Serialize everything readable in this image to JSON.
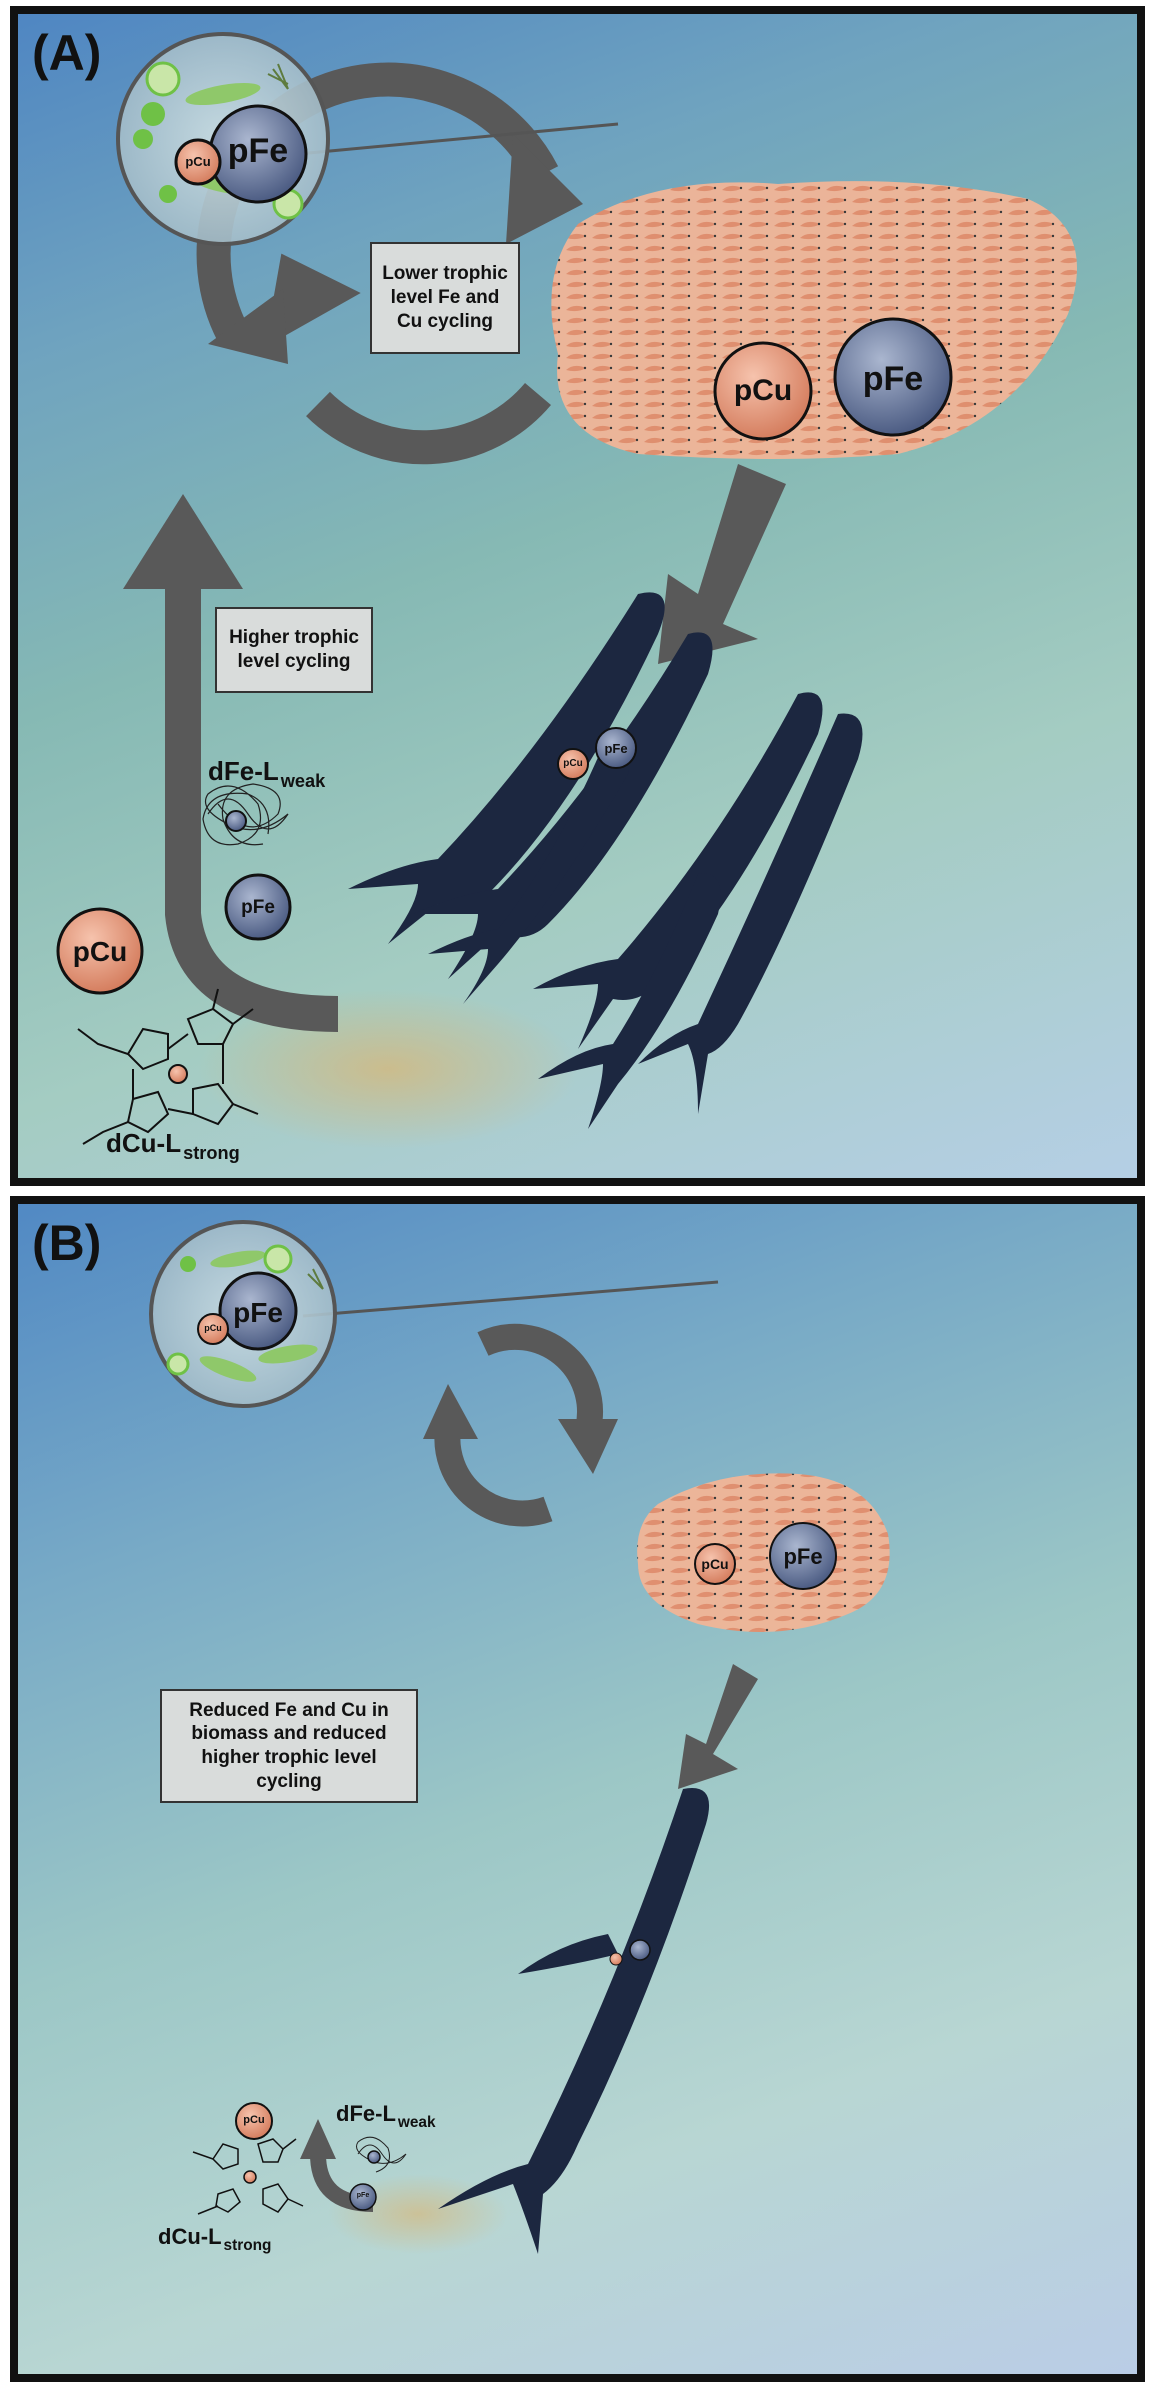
{
  "panel_a": {
    "label": "(A)",
    "lower_cycle_box": "Lower trophic level Fe and Cu cycling",
    "higher_cycle_box": "Higher trophic level cycling",
    "phyto_pfe": "pFe",
    "phyto_pcu": "pCu",
    "krill_pcu": "pCu",
    "krill_pfe": "pFe",
    "whale_pcu": "pCu",
    "whale_pfe": "pFe",
    "feces_pfe": "pFe",
    "feces_pcu": "pCu",
    "dfe_label_main": "dFe-L",
    "dfe_label_sub": "weak",
    "dcu_label_main": "dCu-L",
    "dcu_label_sub": "strong"
  },
  "panel_b": {
    "label": "(B)",
    "reduced_box": "Reduced Fe and Cu in biomass and reduced higher trophic level cycling",
    "phyto_pfe": "pFe",
    "phyto_pcu": "pCu",
    "krill_pcu": "pCu",
    "krill_pfe": "pFe",
    "feces_pcu": "pCu",
    "feces_pfe": "pFe",
    "dfe_label_main": "dFe-L",
    "dfe_label_sub": "weak",
    "dcu_label_main": "dCu-L",
    "dcu_label_sub": "strong"
  },
  "colors": {
    "arrow": "#595959",
    "pcu_fill": "#e0977c",
    "pfe_fill": "#6d7ea3",
    "krill": "#e89a78",
    "whale": "#1c2740",
    "phyto_green": "#6fc146"
  }
}
